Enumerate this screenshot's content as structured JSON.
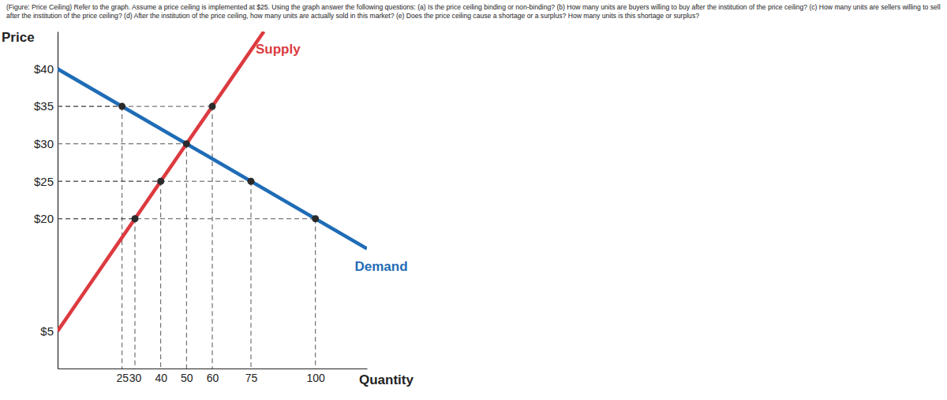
{
  "chart_data": {
    "type": "line",
    "title": "(Figure: Price Ceiling) Refer to the graph. Assume a price ceiling is implemented at $25. Using the graph answer the following questions: (a) Is the price ceiling binding or non-binding? (b) How many units are buyers willing to buy after the institution of the price ceiling? (c) How many units are sellers willing to sell after the institution of the price ceiling? (d) After the institution of the price ceiling, how many units are actually sold in this market? (e) Does the price ceiling cause a shortage or a surplus? How many units is this shortage or surplus?",
    "x_label": "Quantity",
    "y_label": "Price",
    "xlim": [
      0,
      120
    ],
    "ylim": [
      0,
      45
    ],
    "xticks": [
      25,
      30,
      40,
      50,
      60,
      75,
      100
    ],
    "yticks": [
      {
        "value": 5,
        "label": "$5"
      },
      {
        "value": 20,
        "label": "$20"
      },
      {
        "value": 25,
        "label": "$25"
      },
      {
        "value": 30,
        "label": "$30"
      },
      {
        "value": 35,
        "label": "$35"
      },
      {
        "value": 40,
        "label": "$40"
      }
    ],
    "series": [
      {
        "name": "Supply",
        "type": "line",
        "color": "#dc3a40",
        "x": [
          0,
          80
        ],
        "values": [
          5,
          45
        ]
      },
      {
        "name": "Demand",
        "type": "line",
        "color": "#1f6cb6",
        "x": [
          0,
          120
        ],
        "values": [
          40,
          16
        ]
      },
      {
        "type": "scatter",
        "color": "#2b2b2b",
        "marker": "circle",
        "x": [
          30,
          40,
          50,
          60
        ],
        "values": [
          20,
          25,
          30,
          35
        ]
      },
      {
        "type": "scatter",
        "color": "#2b2b2b",
        "marker": "circle",
        "x": [
          25,
          75,
          100
        ],
        "values": [
          35,
          25,
          20
        ]
      }
    ]
  }
}
